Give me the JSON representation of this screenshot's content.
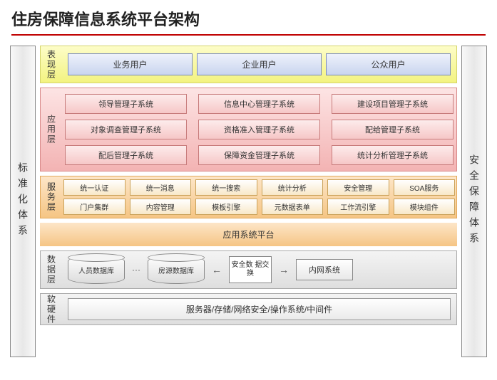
{
  "title": "住房保障信息系统平台架构",
  "left_pillar": "标准化体系",
  "right_pillar": "安全保障体系",
  "layers": {
    "presentation": {
      "label": "表现层",
      "items": [
        "业务用户",
        "企业用户",
        "公众用户"
      ],
      "bg_from": "#fdfdc8",
      "bg_to": "#f3f380",
      "item_bg_from": "#eef2fb",
      "item_bg_to": "#c9d5ef"
    },
    "application": {
      "label": "应用层",
      "items": [
        "领导管理子系统",
        "信息中心管理子系统",
        "建设项目管理子系统",
        "对象调查管理子系统",
        "资格准入管理子系统",
        "配给管理子系统",
        "配后管理子系统",
        "保障资金管理子系统",
        "统计分析管理子系统"
      ],
      "bg_from": "#fde4e4",
      "bg_to": "#f3b3b3"
    },
    "service": {
      "label": "服务层",
      "items": [
        "统一认证",
        "统一消息",
        "统一搜索",
        "统计分析",
        "安全管理",
        "SOA服务",
        "门户集群",
        "内容管理",
        "模板引擎",
        "元数据表单",
        "工作流引擎",
        "模块组件"
      ],
      "bg_from": "#fde6c8",
      "bg_to": "#f5c584"
    },
    "platform": {
      "label": "应用系统平台"
    },
    "data": {
      "label": "数据层",
      "db1": "人员数据库",
      "db2": "房源数据库",
      "exchange": "安全数\n据交换",
      "intranet": "内网系统"
    },
    "hw": {
      "label": "软硬件",
      "text": "服务器/存储/网络安全/操作系统/中间件"
    }
  },
  "colors": {
    "title_rule": "#c00000",
    "pillar_border": "#888888"
  }
}
